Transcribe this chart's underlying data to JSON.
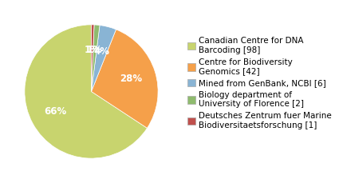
{
  "labels": [
    "Canadian Centre for DNA\nBarcoding [98]",
    "Centre for Biodiversity\nGenomics [42]",
    "Mined from GenBank, NCBI [6]",
    "Biology department of\nUniversity of Florence [2]",
    "Deutsches Zentrum fuer Marine\nBiodiversitaetsforschung [1]"
  ],
  "values": [
    98,
    42,
    6,
    2,
    1
  ],
  "colors": [
    "#c8d46e",
    "#f5a04a",
    "#89b4d4",
    "#8fbb6e",
    "#c0504d"
  ],
  "startangle": 90,
  "background_color": "#ffffff",
  "pct_fontsize": 8.5,
  "legend_fontsize": 7.5
}
